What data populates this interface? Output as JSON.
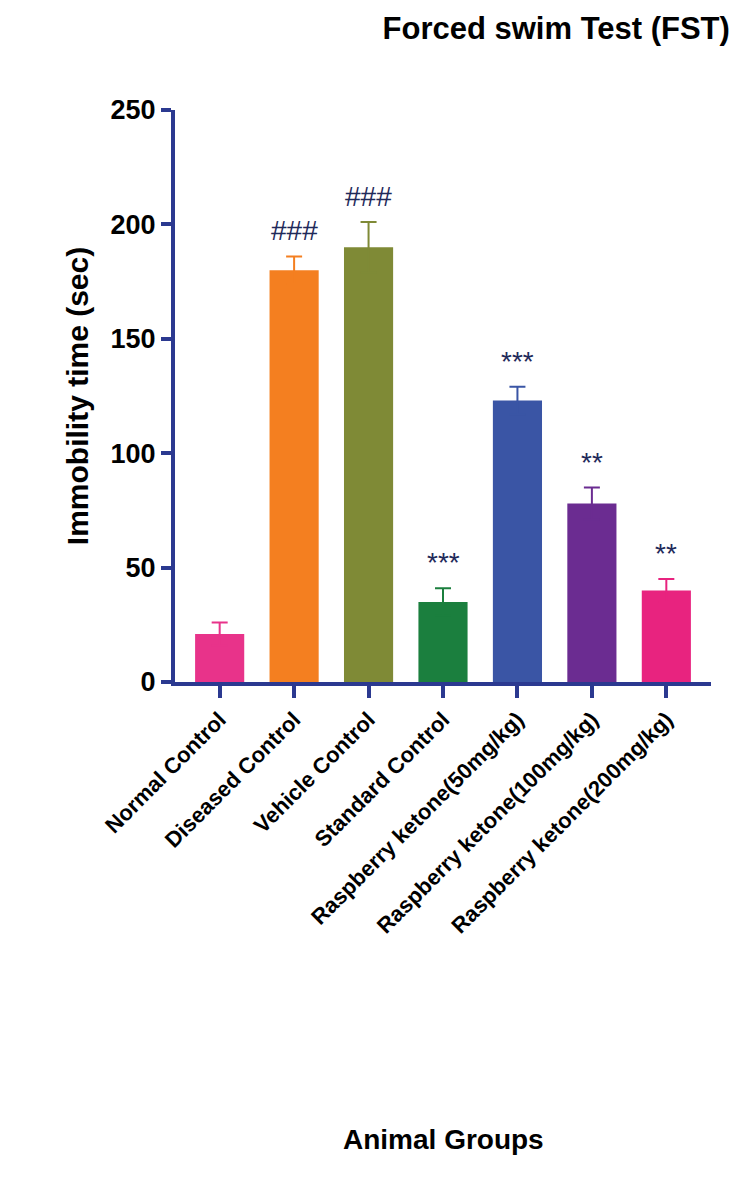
{
  "chart_data": {
    "type": "bar",
    "title": "Forced swim Test (FST)",
    "x_label": "Animal Groups",
    "y_label": "Immobility time (sec)",
    "categories": [
      "Normal Control",
      "Diseased Control",
      "Vehicle Control",
      "Standard Control",
      "Raspberry ketone(50mg/kg)",
      "Raspberry ketone(100mg/kg)",
      "Raspberry ketone(200mg/kg)"
    ],
    "values": [
      21,
      180,
      190,
      35,
      123,
      78,
      40
    ],
    "errors": [
      5,
      6,
      11,
      6,
      6,
      7,
      5
    ],
    "colors": [
      "#e8338a",
      "#f47f20",
      "#7f8a36",
      "#1b7f3e",
      "#3a55a5",
      "#6b2c91",
      "#e8237f"
    ],
    "annotations": [
      {
        "category": "Diseased Control",
        "text": "###"
      },
      {
        "category": "Vehicle Control",
        "text": "###"
      },
      {
        "category": "Standard Control",
        "text": "***"
      },
      {
        "category": "Raspberry ketone(50mg/kg)",
        "text": "***"
      },
      {
        "category": "Raspberry ketone(100mg/kg)",
        "text": "**"
      },
      {
        "category": "Raspberry ketone(200mg/kg)",
        "text": "**"
      }
    ],
    "ylim": [
      0,
      250
    ],
    "yticks": [
      0,
      50,
      100,
      150,
      200,
      250
    ],
    "grid": false
  }
}
